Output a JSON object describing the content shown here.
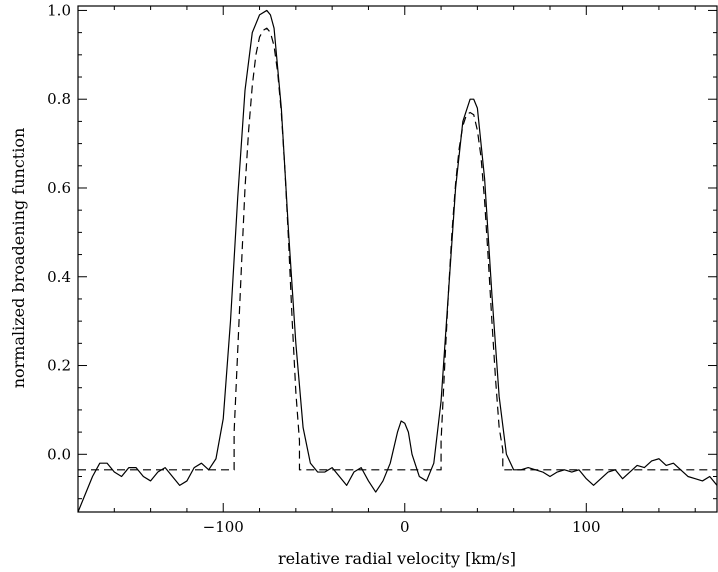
{
  "chart_data": {
    "type": "line",
    "title": "",
    "xlabel": "relative radial velocity [km/s]",
    "ylabel": "normalized broadening function",
    "xlim": [
      -180,
      172
    ],
    "ylim": [
      -0.13,
      1.01
    ],
    "grid": false,
    "legend": "none",
    "x_ticks": [
      {
        "value": -100,
        "label": "−100"
      },
      {
        "value": 0,
        "label": "0"
      },
      {
        "value": 100,
        "label": "100"
      }
    ],
    "y_ticks": [
      {
        "value": 0.0,
        "label": "0.0"
      },
      {
        "value": 0.2,
        "label": "0.2"
      },
      {
        "value": 0.4,
        "label": "0.4"
      },
      {
        "value": 0.6,
        "label": "0.6"
      },
      {
        "value": 0.8,
        "label": "0.8"
      },
      {
        "value": 1.0,
        "label": "1.0"
      }
    ],
    "series": [
      {
        "style": "solid",
        "color": "#000000",
        "x": [
          -180,
          -176,
          -172,
          -168,
          -164,
          -160,
          -156,
          -152,
          -148,
          -144,
          -140,
          -136,
          -132,
          -128,
          -124,
          -120,
          -116,
          -112,
          -108,
          -104,
          -100,
          -96,
          -92,
          -88,
          -84,
          -80,
          -76,
          -74,
          -72,
          -68,
          -64,
          -60,
          -56,
          -52,
          -48,
          -44,
          -40,
          -36,
          -32,
          -28,
          -24,
          -20,
          -16,
          -12,
          -8,
          -4,
          -2,
          0,
          2,
          4,
          8,
          12,
          16,
          20,
          24,
          28,
          32,
          36,
          38,
          40,
          44,
          48,
          52,
          56,
          60,
          64,
          68,
          72,
          76,
          80,
          84,
          88,
          92,
          96,
          100,
          104,
          108,
          112,
          116,
          120,
          124,
          128,
          132,
          136,
          140,
          144,
          148,
          152,
          156,
          160,
          164,
          168,
          172
        ],
        "y": [
          -0.13,
          -0.09,
          -0.05,
          -0.02,
          -0.02,
          -0.04,
          -0.05,
          -0.03,
          -0.03,
          -0.05,
          -0.06,
          -0.04,
          -0.03,
          -0.05,
          -0.07,
          -0.06,
          -0.03,
          -0.02,
          -0.035,
          -0.01,
          0.08,
          0.3,
          0.58,
          0.82,
          0.95,
          0.99,
          1.0,
          0.99,
          0.96,
          0.78,
          0.5,
          0.25,
          0.06,
          -0.02,
          -0.04,
          -0.04,
          -0.03,
          -0.05,
          -0.07,
          -0.04,
          -0.03,
          -0.06,
          -0.085,
          -0.06,
          -0.02,
          0.05,
          0.075,
          0.07,
          0.05,
          0.0,
          -0.05,
          -0.06,
          -0.02,
          0.12,
          0.36,
          0.6,
          0.75,
          0.8,
          0.8,
          0.78,
          0.62,
          0.36,
          0.13,
          0.0,
          -0.035,
          -0.035,
          -0.03,
          -0.035,
          -0.04,
          -0.05,
          -0.04,
          -0.035,
          -0.04,
          -0.035,
          -0.055,
          -0.07,
          -0.055,
          -0.04,
          -0.035,
          -0.055,
          -0.04,
          -0.025,
          -0.03,
          -0.015,
          -0.01,
          -0.025,
          -0.02,
          -0.035,
          -0.05,
          -0.055,
          -0.06,
          -0.05,
          -0.07
        ]
      },
      {
        "style": "dashed",
        "color": "#000000",
        "x": [
          -180,
          -94,
          -94,
          -90,
          -88,
          -86,
          -84,
          -82,
          -80,
          -78,
          -76,
          -74,
          -72,
          -70,
          -68,
          -66,
          -64,
          -62,
          -60,
          -58,
          -58,
          20,
          20,
          22,
          24,
          26,
          28,
          30,
          32,
          34,
          36,
          38,
          40,
          42,
          44,
          46,
          48,
          50,
          52,
          54,
          54,
          172
        ],
        "y": [
          -0.035,
          -0.035,
          0.05,
          0.42,
          0.6,
          0.73,
          0.83,
          0.9,
          0.94,
          0.955,
          0.96,
          0.95,
          0.92,
          0.86,
          0.77,
          0.64,
          0.48,
          0.3,
          0.14,
          0.03,
          -0.035,
          -0.035,
          0.03,
          0.2,
          0.36,
          0.5,
          0.61,
          0.69,
          0.74,
          0.765,
          0.77,
          0.765,
          0.73,
          0.67,
          0.57,
          0.44,
          0.3,
          0.17,
          0.06,
          0.01,
          -0.035,
          -0.035
        ]
      }
    ]
  }
}
